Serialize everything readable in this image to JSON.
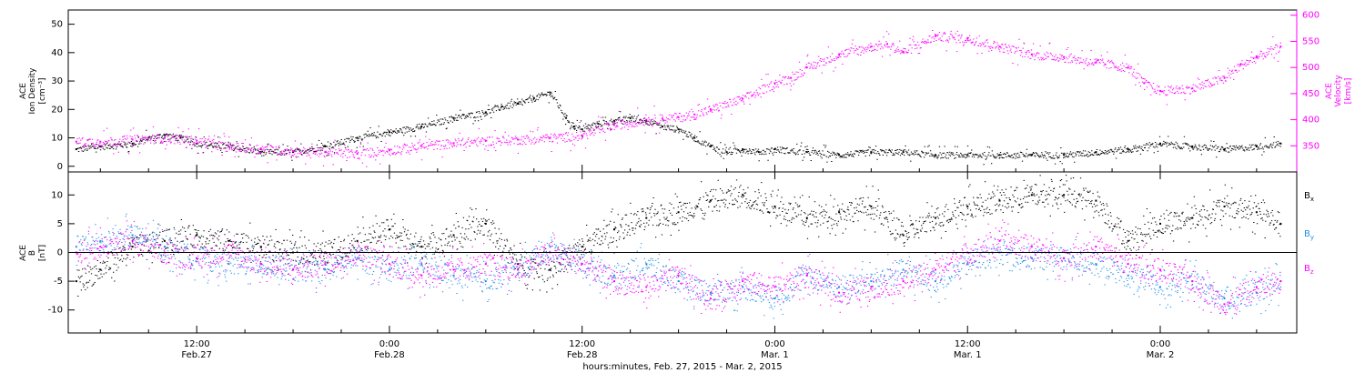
{
  "xaxis": {
    "label": "hours:minutes, Feb. 27, 2015 - Mar. 2, 2015",
    "ticks": [
      {
        "hour": 12,
        "time": "12:00",
        "date": "Feb.27"
      },
      {
        "hour": 24,
        "time": "0:00",
        "date": "Feb.28"
      },
      {
        "hour": 36,
        "time": "12:00",
        "date": "Feb.28"
      },
      {
        "hour": 48,
        "time": "0:00",
        "date": "Mar. 1"
      },
      {
        "hour": 60,
        "time": "12:00",
        "date": "Mar. 1"
      },
      {
        "hour": 72,
        "time": "0:00",
        "date": "Mar. 2"
      }
    ],
    "range_hours": [
      4,
      80.5
    ]
  },
  "chart_data": [
    {
      "type": "scatter",
      "panel": "top",
      "xlabel": "hours:minutes, Feb. 27, 2015 - Mar. 2, 2015",
      "ylabel_left": [
        "ACE",
        "Ion Density",
        "[cm⁻³]"
      ],
      "ylabel_right": [
        "ACE",
        "Velocity",
        "[km/s]"
      ],
      "ylim_left": [
        -2,
        55
      ],
      "yticks_left": [
        0,
        10,
        20,
        30,
        40,
        50
      ],
      "ylim_right": [
        300,
        610
      ],
      "yticks_right": [
        350,
        400,
        450,
        500,
        550,
        600
      ],
      "x_units": "hours since Feb. 27, 2015 0:00 UT",
      "series": [
        {
          "axis": "left",
          "color": "#000000",
          "x": [
            4.5,
            6,
            8,
            9,
            10,
            11,
            12,
            14,
            16,
            18,
            20,
            22,
            24,
            26,
            28,
            30,
            31,
            32,
            33,
            34,
            35,
            35.5,
            36,
            37,
            38,
            39,
            40,
            41,
            42,
            43,
            44,
            45,
            46,
            47,
            48,
            50,
            52,
            54,
            56,
            58,
            60,
            62,
            64,
            66,
            68,
            70,
            72,
            74,
            76,
            78,
            79.5
          ],
          "y": [
            6,
            7,
            8,
            10,
            11,
            10,
            8,
            7,
            5,
            5,
            7,
            10,
            12,
            14,
            17,
            19,
            21,
            22,
            24,
            26,
            17,
            14,
            13,
            15,
            16,
            17,
            16,
            14,
            13,
            10,
            7,
            5,
            6,
            5,
            6,
            5,
            4,
            5,
            5,
            4,
            4,
            4,
            4,
            4,
            5,
            6,
            8,
            7,
            6,
            7,
            8
          ]
        },
        {
          "axis": "right",
          "color": "#ff00ff",
          "x": [
            4.5,
            6,
            8,
            10,
            12,
            14,
            16,
            18,
            20,
            22,
            24,
            26,
            28,
            30,
            32,
            34,
            36,
            38,
            40,
            41,
            42,
            43,
            44,
            46,
            48,
            49,
            50,
            52,
            54,
            55,
            56,
            58,
            60,
            62,
            64,
            66,
            68,
            70,
            71,
            72,
            74,
            76,
            77,
            78,
            79.5
          ],
          "y": [
            358,
            358,
            362,
            365,
            360,
            348,
            345,
            340,
            338,
            335,
            342,
            350,
            355,
            360,
            362,
            365,
            370,
            390,
            400,
            402,
            405,
            410,
            420,
            440,
            470,
            480,
            500,
            525,
            540,
            545,
            530,
            560,
            555,
            540,
            525,
            520,
            510,
            500,
            470,
            455,
            460,
            480,
            505,
            520,
            540
          ]
        }
      ]
    },
    {
      "type": "scatter",
      "panel": "bottom",
      "xlabel": "hours:minutes, Feb. 27, 2015 - Mar. 2, 2015",
      "ylabel": [
        "ACE",
        "B",
        "[nT]"
      ],
      "ylim": [
        -14,
        14
      ],
      "yticks": [
        -10,
        -5,
        0,
        5,
        10
      ],
      "zero_line": true,
      "x_units": "hours since Feb. 27, 2015 0:00 UT",
      "series": [
        {
          "name": "B",
          "subscript": "x",
          "color": "#000000",
          "x": [
            4.5,
            6,
            8,
            10,
            12,
            14,
            16,
            18,
            20,
            22,
            24,
            26,
            28,
            30,
            32,
            34,
            36,
            38,
            40,
            42,
            44,
            46,
            48,
            50,
            52,
            54,
            56,
            58,
            60,
            62,
            64,
            66,
            68,
            70,
            72,
            74,
            76,
            78,
            79.5
          ],
          "y": [
            -5,
            -3,
            1,
            2,
            3,
            2,
            1,
            0,
            0,
            2,
            4,
            1,
            3,
            5,
            -2,
            -3,
            1,
            4,
            6,
            7,
            9,
            10,
            8,
            6,
            7,
            8,
            3,
            6,
            8,
            9,
            10,
            10,
            9,
            2,
            5,
            6,
            8,
            7,
            5
          ]
        },
        {
          "name": "B",
          "subscript": "y",
          "color": "#1e8fe8",
          "x": [
            4.5,
            6,
            8,
            10,
            12,
            14,
            16,
            18,
            20,
            22,
            24,
            26,
            28,
            30,
            32,
            34,
            36,
            38,
            40,
            42,
            44,
            46,
            48,
            50,
            52,
            54,
            56,
            58,
            60,
            62,
            64,
            66,
            68,
            70,
            72,
            74,
            76,
            78,
            79.5
          ],
          "y": [
            1,
            2,
            3,
            1,
            -1,
            -2,
            -2,
            -3,
            -3,
            -1,
            -3,
            -2,
            -4,
            -5,
            -3,
            1,
            -2,
            -4,
            -2,
            -5,
            -7,
            -6,
            -8,
            -4,
            -6,
            -5,
            -3,
            -5,
            -2,
            0,
            -1,
            -1,
            -2,
            -4,
            -6,
            -5,
            -8,
            -7,
            -5
          ]
        },
        {
          "name": "B",
          "subscript": "z",
          "color": "#ff00ff",
          "x": [
            4.5,
            6,
            8,
            10,
            12,
            14,
            16,
            18,
            20,
            22,
            24,
            26,
            28,
            30,
            32,
            34,
            36,
            38,
            40,
            42,
            44,
            46,
            48,
            50,
            52,
            54,
            56,
            58,
            60,
            62,
            64,
            66,
            68,
            70,
            72,
            74,
            76,
            78,
            79.5
          ],
          "y": [
            0,
            1,
            2,
            0,
            -1,
            0,
            -2,
            -3,
            -2,
            0,
            -2,
            -4,
            -3,
            -2,
            -3,
            0,
            -2,
            -5,
            -6,
            -4,
            -8,
            -5,
            -6,
            -4,
            -7,
            -6,
            -5,
            -3,
            0,
            2,
            1,
            -1,
            1,
            -2,
            -3,
            -5,
            -9,
            -6,
            -5
          ]
        }
      ]
    }
  ]
}
